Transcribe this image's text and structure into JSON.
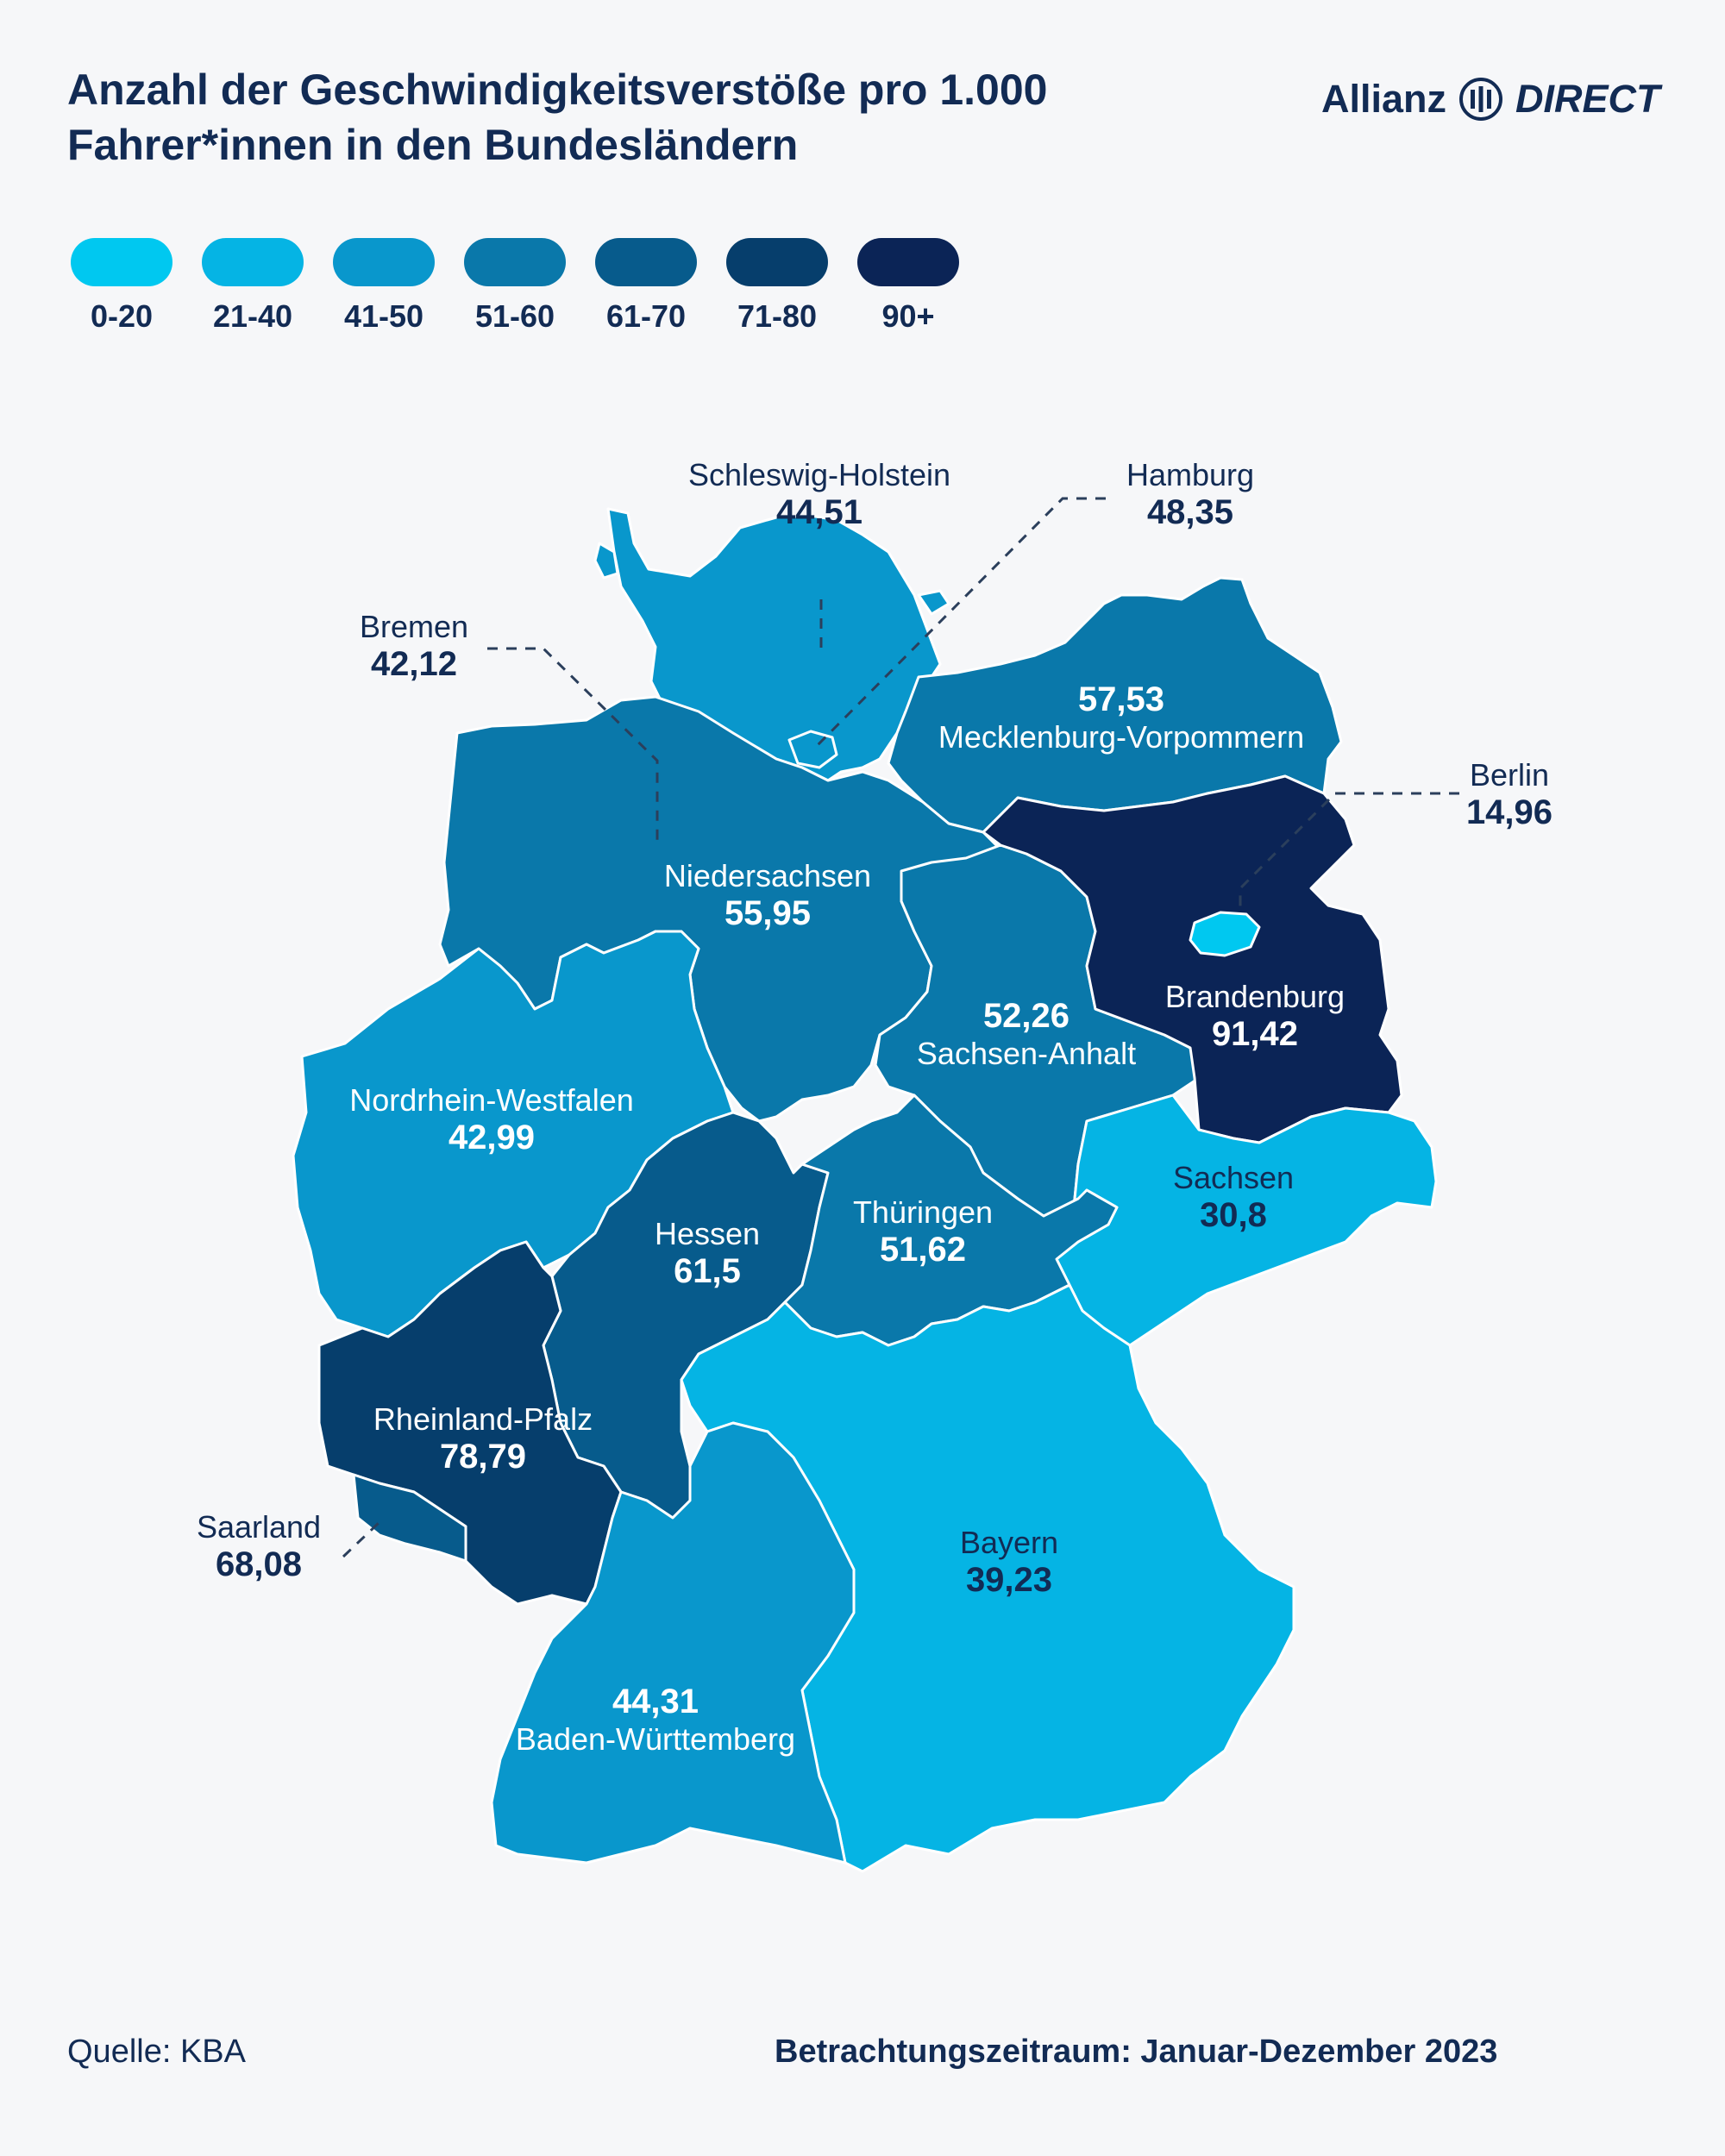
{
  "title_line1": "Anzahl der Geschwindigkeitsverstöße pro 1.000",
  "title_line2": "Fahrer*innen in den Bundesländern",
  "brand": {
    "name": "Allianz",
    "product": "DIRECT"
  },
  "legend": [
    {
      "label": "0-20",
      "color": "#00c8f0"
    },
    {
      "label": "21-40",
      "color": "#05b4e4"
    },
    {
      "label": "41-50",
      "color": "#0997cc"
    },
    {
      "label": "51-60",
      "color": "#0a78aa"
    },
    {
      "label": "61-70",
      "color": "#075b8c"
    },
    {
      "label": "71-80",
      "color": "#063e6c"
    },
    {
      "label": "90+",
      "color": "#0b2456"
    }
  ],
  "states": {
    "schleswig_holstein": {
      "name": "Schleswig-Holstein",
      "value": "44,51",
      "color": "#0997cc"
    },
    "hamburg": {
      "name": "Hamburg",
      "value": "48,35",
      "color": "#0997cc"
    },
    "bremen": {
      "name": "Bremen",
      "value": "42,12",
      "color": "#0997cc"
    },
    "mecklenburg_vorpommern": {
      "name": "Mecklenburg-Vorpommern",
      "value": "57,53",
      "color": "#0a78aa"
    },
    "niedersachsen": {
      "name": "Niedersachsen",
      "value": "55,95",
      "color": "#0a78aa"
    },
    "berlin": {
      "name": "Berlin",
      "value": "14,96",
      "color": "#00c8f0"
    },
    "brandenburg": {
      "name": "Brandenburg",
      "value": "91,42",
      "color": "#0b2456"
    },
    "sachsen_anhalt": {
      "name": "Sachsen-Anhalt",
      "value": "52,26",
      "color": "#0a78aa"
    },
    "nordrhein_westfalen": {
      "name": "Nordrhein-Westfalen",
      "value": "42,99",
      "color": "#0997cc"
    },
    "sachsen": {
      "name": "Sachsen",
      "value": "30,8",
      "color": "#05b4e4"
    },
    "hessen": {
      "name": "Hessen",
      "value": "61,5",
      "color": "#075b8c"
    },
    "thueringen": {
      "name": "Thüringen",
      "value": "51,62",
      "color": "#0a78aa"
    },
    "rheinland_pfalz": {
      "name": "Rheinland-Pfalz",
      "value": "78,79",
      "color": "#063e6c"
    },
    "saarland": {
      "name": "Saarland",
      "value": "68,08",
      "color": "#075b8c"
    },
    "bayern": {
      "name": "Bayern",
      "value": "39,23",
      "color": "#05b4e4"
    },
    "baden_wuerttemberg": {
      "name": "Baden-Württemberg",
      "value": "44,31",
      "color": "#0997cc"
    }
  },
  "source": "Quelle: KBA",
  "period": "Betrachtungszeitraum: Januar-Dezember 2023"
}
